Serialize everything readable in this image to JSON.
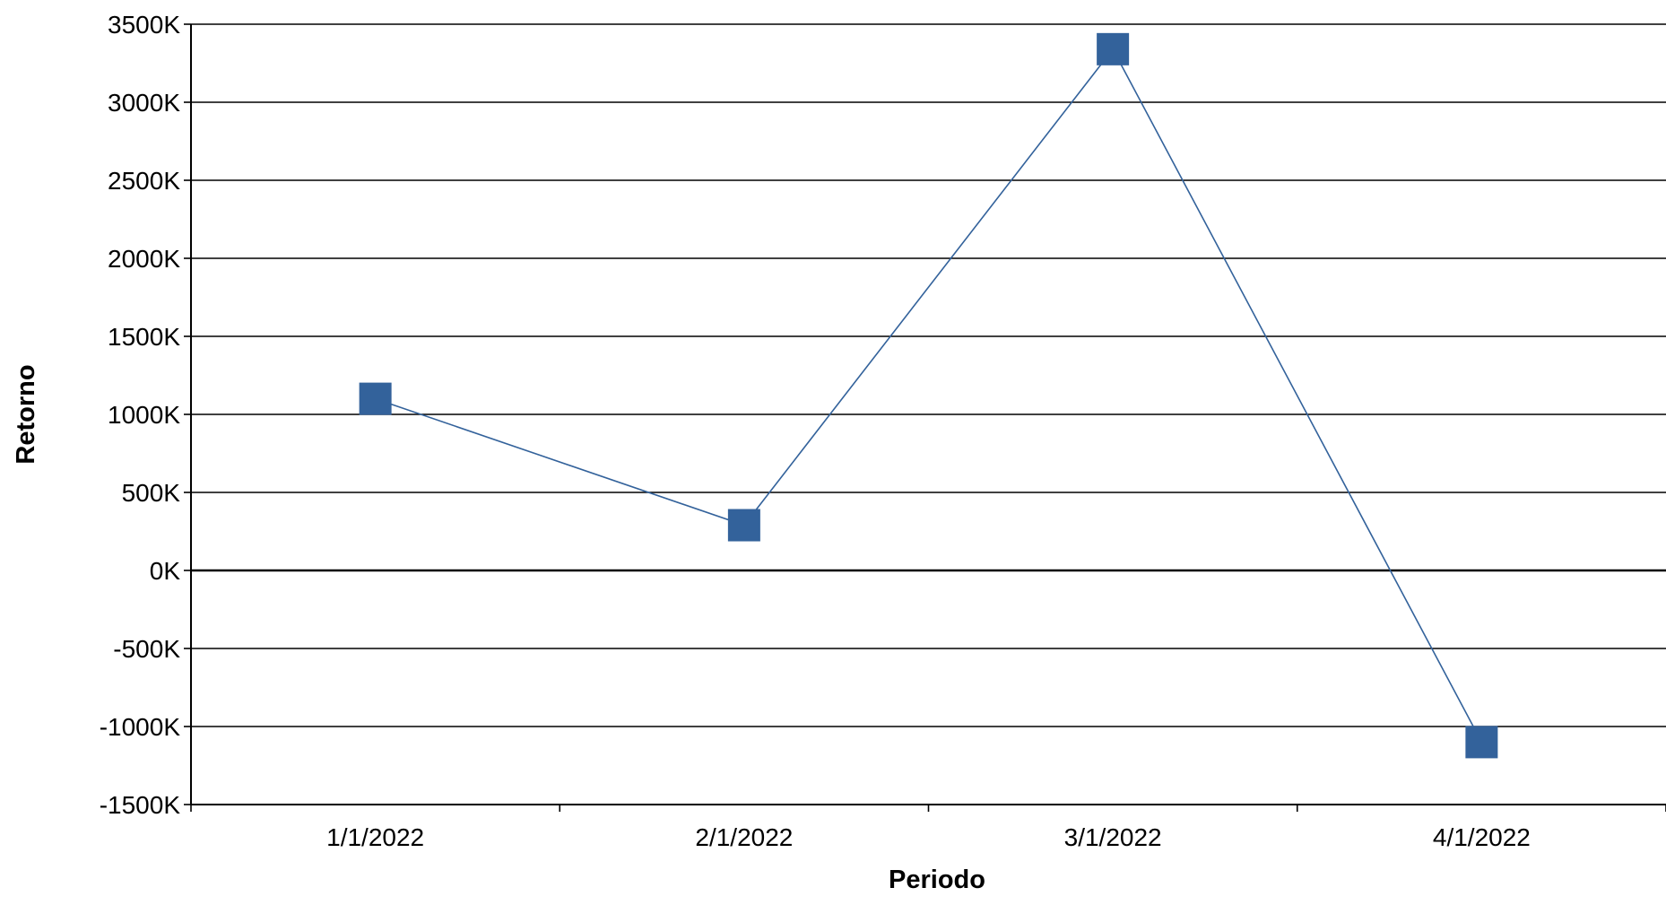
{
  "chart_data": {
    "type": "line",
    "categories": [
      "1/1/2022",
      "2/1/2022",
      "3/1/2022",
      "4/1/2022"
    ],
    "series": [
      {
        "values": [
          1100,
          290,
          3340,
          -1100
        ],
        "color": "#33629b",
        "marker": "square"
      }
    ],
    "xlabel": "Periodo",
    "ylabel": "Retorno",
    "ylim": [
      -1500,
      3500
    ],
    "yticks": [
      3500,
      3000,
      2500,
      2000,
      1500,
      1000,
      500,
      0,
      -500,
      -1000,
      -1500
    ],
    "ytick_labels": [
      "3500K",
      "3000K",
      "2500K",
      "2000K",
      "1500K",
      "1000K",
      "500K",
      "0K",
      "-500K",
      "-1000K",
      "-1500K"
    ],
    "grid": true,
    "grid_color": "#000000",
    "line_color": "#33629b",
    "marker_color": "#33629b"
  }
}
